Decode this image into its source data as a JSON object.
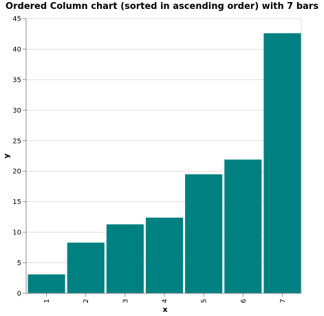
{
  "chart_data": {
    "type": "bar",
    "title": "Ordered Column chart (sorted in ascending order) with 7 bars",
    "xlabel": "x",
    "ylabel": "y",
    "categories": [
      "1",
      "2",
      "3",
      "4",
      "5",
      "6",
      "7"
    ],
    "values": [
      3.1,
      8.3,
      11.3,
      12.4,
      19.5,
      21.9,
      42.6
    ],
    "ylim": [
      0,
      45
    ],
    "yticks": [
      "0",
      "5",
      "10",
      "15",
      "20",
      "25",
      "30",
      "35",
      "40",
      "45"
    ],
    "grid": true,
    "bar_color": "#008080",
    "gridline_color": "#dddddd",
    "axis_color": "#888888"
  }
}
